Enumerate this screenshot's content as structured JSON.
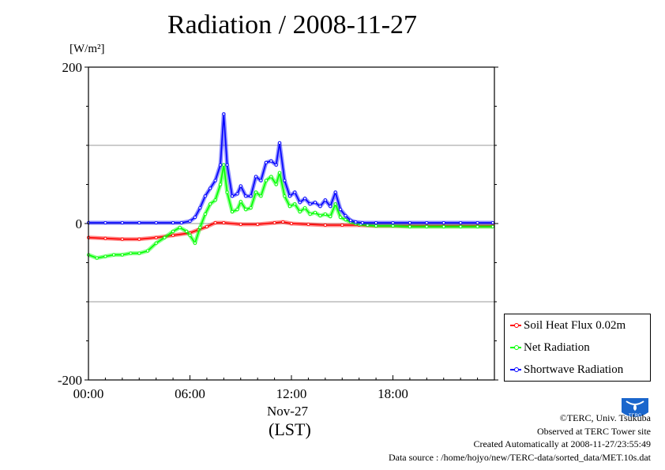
{
  "chart_data": {
    "type": "line",
    "title": "Radiation / 2008-11-27",
    "unit_label": "[W/m²]",
    "ylim": [
      -200,
      200
    ],
    "yticks": [
      200,
      0,
      -200
    ],
    "ytick_labels": [
      "200",
      "0",
      "-200"
    ],
    "gridlines_y": [
      100,
      0,
      -100
    ],
    "xlim": [
      0,
      24
    ],
    "xticks": [
      0,
      6,
      12,
      18
    ],
    "xtick_labels": [
      "00:00",
      "06:00",
      "12:00",
      "18:00"
    ],
    "date_label": "Nov-27",
    "xlabel": "(LST)",
    "legend_position": "bottom-right",
    "series": [
      {
        "name": "Soil Heat Flux 0.02m",
        "color": "#ff0000",
        "x": [
          0,
          1,
          2,
          3,
          4,
          5,
          6,
          6.5,
          7,
          7.5,
          8,
          9,
          10,
          11,
          11.5,
          12,
          13,
          14,
          15,
          16,
          17,
          18,
          19,
          20,
          21,
          22,
          23,
          23.9
        ],
        "y": [
          -18,
          -19,
          -20,
          -20,
          -18,
          -15,
          -12,
          -8,
          -4,
          1,
          1,
          -1,
          -1,
          1,
          2,
          0,
          -1,
          -2,
          -2,
          -2,
          -3,
          -3,
          -3,
          -3,
          -3,
          -3,
          -3,
          -3
        ]
      },
      {
        "name": "Net Radiation",
        "color": "#00ff00",
        "x": [
          0,
          0.5,
          1,
          1.5,
          2,
          2.5,
          3,
          3.5,
          4,
          4.5,
          5,
          5.4,
          5.8,
          6,
          6.3,
          6.6,
          6.9,
          7.2,
          7.5,
          7.8,
          8.0,
          8.2,
          8.5,
          8.8,
          9.0,
          9.3,
          9.6,
          9.9,
          10.2,
          10.5,
          10.8,
          11.1,
          11.3,
          11.6,
          11.9,
          12.2,
          12.5,
          12.8,
          13.1,
          13.4,
          13.7,
          14.0,
          14.3,
          14.6,
          14.9,
          15.2,
          15.5,
          15.8,
          16.1,
          16.5,
          17,
          18,
          19,
          20,
          21,
          22,
          23,
          23.9
        ],
        "y": [
          -40,
          -44,
          -42,
          -40,
          -40,
          -38,
          -38,
          -35,
          -25,
          -18,
          -10,
          -5,
          -10,
          -15,
          -25,
          -5,
          12,
          25,
          30,
          50,
          75,
          40,
          15,
          18,
          28,
          18,
          20,
          40,
          35,
          55,
          60,
          50,
          65,
          35,
          22,
          25,
          15,
          20,
          12,
          14,
          10,
          12,
          9,
          25,
          8,
          5,
          2,
          0,
          -1,
          -2,
          -3,
          -3,
          -4,
          -4,
          -4,
          -4,
          -4,
          -4
        ]
      },
      {
        "name": "Shortwave Radiation",
        "color": "#0000ff",
        "x": [
          0,
          1,
          2,
          3,
          4,
          5,
          5.5,
          6,
          6.3,
          6.6,
          6.9,
          7.2,
          7.5,
          7.8,
          8.0,
          8.2,
          8.5,
          8.8,
          9.0,
          9.3,
          9.6,
          9.9,
          10.2,
          10.5,
          10.8,
          11.1,
          11.3,
          11.6,
          11.9,
          12.2,
          12.5,
          12.8,
          13.1,
          13.4,
          13.7,
          14.0,
          14.3,
          14.6,
          14.9,
          15.2,
          15.5,
          15.8,
          16.2,
          17,
          18,
          19,
          20,
          21,
          22,
          23,
          23.9
        ],
        "y": [
          1,
          1,
          1,
          1,
          1,
          1,
          1,
          3,
          8,
          20,
          35,
          45,
          55,
          75,
          140,
          75,
          35,
          38,
          48,
          35,
          35,
          60,
          55,
          78,
          80,
          75,
          103,
          55,
          35,
          40,
          27,
          32,
          25,
          27,
          22,
          30,
          22,
          40,
          18,
          10,
          4,
          2,
          1,
          1,
          1,
          1,
          1,
          1,
          1,
          1,
          1
        ]
      }
    ]
  },
  "credits": {
    "copyright": "©TERC, Univ. Tsukuba",
    "observed": "Observed at TERC Tower site",
    "created": "Created Automatically at 2008-11-27/23:55:49",
    "source": "Data source : /home/hojyo/new/TERC-data/sorted_data/MET.10s.dat"
  },
  "logo": {
    "text": "TERC",
    "icon": "terc-logo-icon",
    "color": "#1a66cc"
  }
}
